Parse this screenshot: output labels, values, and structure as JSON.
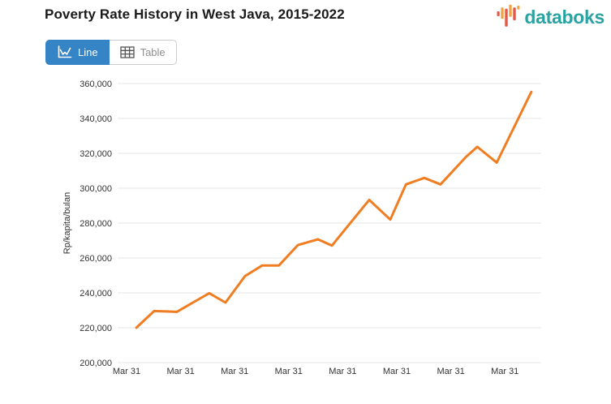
{
  "header": {
    "logo_text": "databoks"
  },
  "toolbar": {
    "line_label": "Line",
    "table_label": "Table",
    "active_view": "Line"
  },
  "colors": {
    "accent_blue": "#3584c5",
    "line_orange": "#f07d21",
    "logo_teal": "#2ba3a3",
    "logo_orange": "#f2a444",
    "logo_red": "#e2594a",
    "grid": "#e6e6e6",
    "text_dark": "#1a1a1a",
    "axis_text": "#333333",
    "muted_text": "#8f8f8f",
    "border": "#cccccc"
  },
  "chart_data": {
    "type": "line",
    "title": "Poverty Rate History in West Java, 2015-2022",
    "xlabel": "",
    "ylabel": "Rp/kapita/bulan",
    "ylim": [
      200000,
      360000
    ],
    "xlim_years": [
      2014.83,
      2022.67
    ],
    "grid": "horizontal",
    "legend_position": "none",
    "line_color": "#f07d21",
    "y_ticks": [
      {
        "value": 200000,
        "label": "200,000"
      },
      {
        "value": 220000,
        "label": "220,000"
      },
      {
        "value": 240000,
        "label": "240,000"
      },
      {
        "value": 260000,
        "label": "260,000"
      },
      {
        "value": 280000,
        "label": "280,000"
      },
      {
        "value": 300000,
        "label": "300,000"
      },
      {
        "value": 320000,
        "label": "320,000"
      },
      {
        "value": 340000,
        "label": "340,000"
      },
      {
        "value": 360000,
        "label": "360,000"
      }
    ],
    "x_ticks": [
      {
        "year": 2015,
        "label": "Mar 31"
      },
      {
        "year": 2016,
        "label": "Mar 31"
      },
      {
        "year": 2017,
        "label": "Mar 31"
      },
      {
        "year": 2018,
        "label": "Mar 31"
      },
      {
        "year": 2019,
        "label": "Mar 31"
      },
      {
        "year": 2020,
        "label": "Mar 31"
      },
      {
        "year": 2021,
        "label": "Mar 31"
      },
      {
        "year": 2022,
        "label": "Mar 31"
      }
    ],
    "points": [
      {
        "t": 2015.18,
        "v": 220000
      },
      {
        "t": 2015.51,
        "v": 229600
      },
      {
        "t": 2015.93,
        "v": 229100
      },
      {
        "t": 2016.53,
        "v": 239800
      },
      {
        "t": 2016.83,
        "v": 234400
      },
      {
        "t": 2017.19,
        "v": 249600
      },
      {
        "t": 2017.51,
        "v": 255700
      },
      {
        "t": 2017.82,
        "v": 255700
      },
      {
        "t": 2018.17,
        "v": 267400
      },
      {
        "t": 2018.54,
        "v": 270700
      },
      {
        "t": 2018.8,
        "v": 267100
      },
      {
        "t": 2019.49,
        "v": 293300
      },
      {
        "t": 2019.88,
        "v": 282000
      },
      {
        "t": 2020.17,
        "v": 302200
      },
      {
        "t": 2020.51,
        "v": 305900
      },
      {
        "t": 2020.81,
        "v": 302200
      },
      {
        "t": 2021.28,
        "v": 317900
      },
      {
        "t": 2021.49,
        "v": 323700
      },
      {
        "t": 2021.85,
        "v": 314700
      },
      {
        "t": 2022.49,
        "v": 355200
      }
    ]
  }
}
